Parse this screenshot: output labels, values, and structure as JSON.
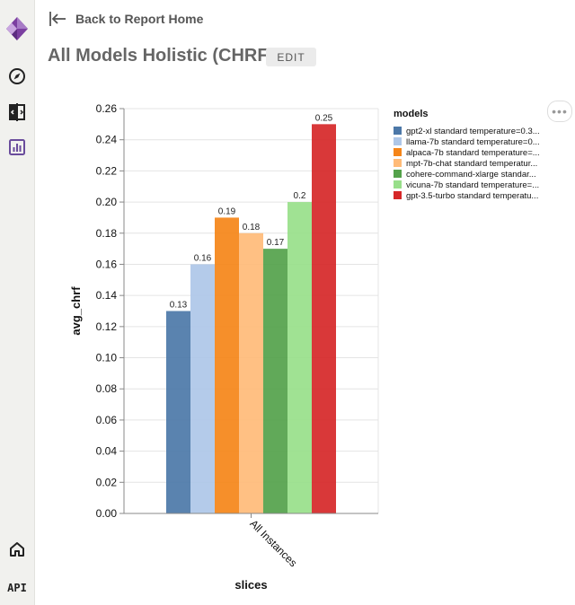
{
  "nav": {
    "back_label": "Back to Report Home",
    "api_label": "API"
  },
  "header": {
    "title": "All Models Holistic (CHRF)",
    "edit_label": "EDIT"
  },
  "colors": {
    "sidebar_bg": "#f1f1ee",
    "logo_purple": "#7b3fa0",
    "active_icon": "#6a4c9c"
  },
  "chart_data": {
    "type": "bar",
    "xlabel": "slices",
    "ylabel": "avg_chrf",
    "categories": [
      "All Instances"
    ],
    "ylim": [
      0,
      0.26
    ],
    "yticks": [
      "0.00",
      "0.02",
      "0.04",
      "0.06",
      "0.08",
      "0.10",
      "0.12",
      "0.14",
      "0.16",
      "0.18",
      "0.20",
      "0.22",
      "0.24",
      "0.26"
    ],
    "grid": true,
    "legend_title": "models",
    "legend_position": "right",
    "series": [
      {
        "name": "gpt2-xl standard temperature=0.3...",
        "values": [
          0.13
        ],
        "label": "0.13",
        "color": "#4c78a8"
      },
      {
        "name": "llama-7b standard temperature=0...",
        "values": [
          0.16
        ],
        "label": "0.16",
        "color": "#aec7e8"
      },
      {
        "name": "alpaca-7b standard temperature=...",
        "values": [
          0.19
        ],
        "label": "0.19",
        "color": "#f58518"
      },
      {
        "name": "mpt-7b-chat standard temperatur...",
        "values": [
          0.18
        ],
        "label": "0.18",
        "color": "#ffbb78"
      },
      {
        "name": "cohere-command-xlarge standar...",
        "values": [
          0.17
        ],
        "label": "0.17",
        "color": "#54a24b"
      },
      {
        "name": "vicuna-7b standard temperature=...",
        "values": [
          0.2
        ],
        "label": "0.2",
        "color": "#98df8a"
      },
      {
        "name": "gpt-3.5-turbo standard temperatu...",
        "values": [
          0.25
        ],
        "label": "0.25",
        "color": "#d62728"
      }
    ]
  }
}
